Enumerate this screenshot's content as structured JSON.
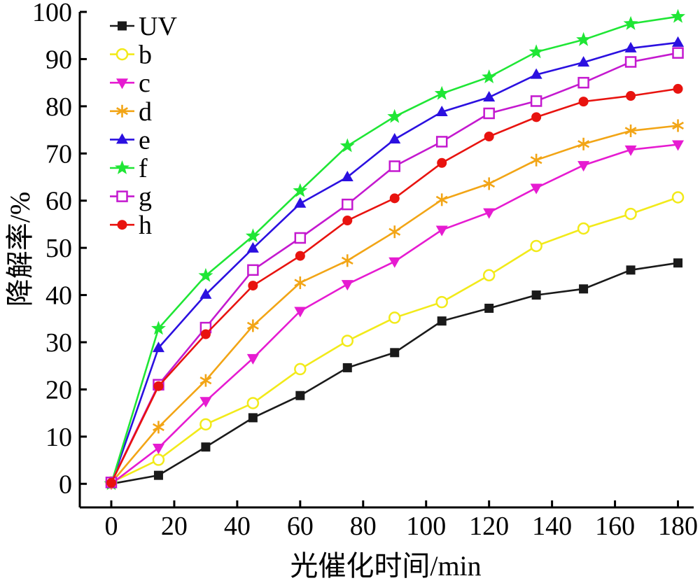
{
  "chart_data": {
    "type": "line",
    "xlabel": "光催化时间/min",
    "ylabel": "降解率/%",
    "xlim": [
      -10,
      185
    ],
    "ylim": [
      -5,
      100
    ],
    "xticks": [
      0,
      20,
      40,
      60,
      80,
      100,
      120,
      140,
      160,
      180
    ],
    "yticks": [
      0,
      10,
      20,
      30,
      40,
      50,
      60,
      70,
      80,
      90,
      100
    ],
    "grid": false,
    "legend_position": "top-left",
    "x": [
      0,
      15,
      30,
      45,
      60,
      75,
      90,
      105,
      120,
      135,
      150,
      165,
      180
    ],
    "series": [
      {
        "name": "UV",
        "color": "#1a1a1a",
        "marker": "square-filled",
        "values": [
          0,
          1.8,
          7.8,
          14.0,
          18.7,
          24.6,
          27.8,
          34.5,
          37.2,
          40.0,
          41.3,
          45.3,
          46.8
        ]
      },
      {
        "name": "b",
        "color": "#f2ea1a",
        "marker": "circle-open",
        "values": [
          0.3,
          5.1,
          12.6,
          17.1,
          24.3,
          30.3,
          35.2,
          38.5,
          44.2,
          50.4,
          54.1,
          57.2,
          60.7
        ]
      },
      {
        "name": "c",
        "color": "#e61bd1",
        "marker": "triangle-down-filled",
        "values": [
          0,
          7.6,
          17.5,
          26.6,
          36.6,
          42.3,
          47.1,
          53.8,
          57.5,
          62.7,
          67.5,
          70.8,
          71.9
        ]
      },
      {
        "name": "d",
        "color": "#f2a516",
        "marker": "asterisk",
        "values": [
          0.2,
          12.0,
          21.9,
          33.5,
          42.6,
          47.3,
          53.4,
          60.2,
          63.6,
          68.6,
          72.0,
          74.8,
          75.9
        ]
      },
      {
        "name": "e",
        "color": "#2b10e0",
        "marker": "triangle-up-filled",
        "values": [
          0,
          28.8,
          40.1,
          49.9,
          59.4,
          65.0,
          73.0,
          78.8,
          81.9,
          86.7,
          89.3,
          92.3,
          93.5
        ]
      },
      {
        "name": "f",
        "color": "#1fe635",
        "marker": "star-filled",
        "values": [
          0,
          32.9,
          44.1,
          52.5,
          62.1,
          71.6,
          77.8,
          82.7,
          86.2,
          91.5,
          94.1,
          97.5,
          99.0
        ]
      },
      {
        "name": "g",
        "color": "#c419cf",
        "marker": "square-open",
        "values": [
          0.3,
          21.0,
          33.1,
          45.3,
          52.1,
          59.2,
          67.3,
          72.5,
          78.5,
          81.1,
          85.0,
          89.4,
          91.3
        ]
      },
      {
        "name": "h",
        "color": "#e8130f",
        "marker": "circle-filled",
        "values": [
          0.2,
          20.7,
          31.7,
          42.0,
          48.3,
          55.8,
          60.5,
          68.0,
          73.6,
          77.7,
          81.0,
          82.2,
          83.7
        ]
      }
    ]
  }
}
